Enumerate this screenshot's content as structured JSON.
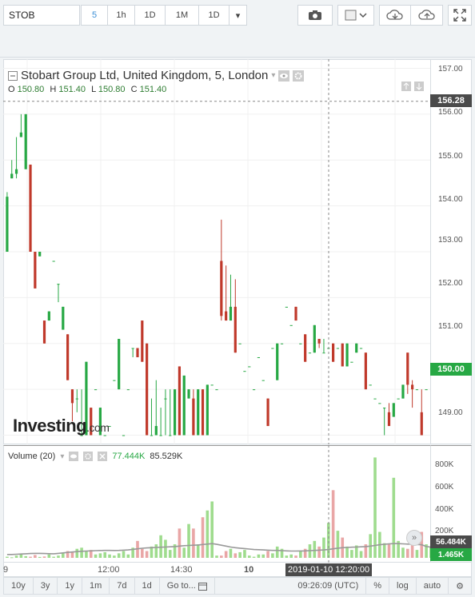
{
  "toolbar": {
    "symbol": "STOB",
    "intervals": [
      "5",
      "1h",
      "1D",
      "1M",
      "1D"
    ],
    "active_interval": "5"
  },
  "legend": {
    "title": "Stobart Group Ltd, United Kingdom, 5, London",
    "o_label": "O",
    "o": "150.80",
    "h_label": "H",
    "h": "151.40",
    "l_label": "L",
    "l": "150.80",
    "c_label": "C",
    "c": "151.40"
  },
  "price_axis": {
    "ticks": [
      "157.00",
      "156.00",
      "155.00",
      "154.00",
      "153.00",
      "152.00",
      "151.00",
      "150.00",
      "149.00"
    ],
    "crosshair_label": "156.28",
    "last_price_label": "150.00"
  },
  "volume": {
    "title": "Volume (20)",
    "value1": "77.444K",
    "value2": "85.529K",
    "ticks": [
      "800K",
      "600K",
      "400K",
      "200K"
    ],
    "tag1": "56.484K",
    "tag2": "1.465K"
  },
  "time_axis": {
    "ticks": [
      "9",
      "12:00",
      "14:30",
      "10"
    ],
    "crosshair_label": "2019-01-10 12:20:00"
  },
  "bottom_bar": {
    "ranges": [
      "10y",
      "3y",
      "1y",
      "1m",
      "7d",
      "1d",
      "Go to..."
    ],
    "clock": "09:26:09 (UTC)",
    "toggles": [
      "%",
      "log",
      "auto"
    ]
  },
  "branding": {
    "logo": "Investing",
    "logo_suffix": ".com"
  },
  "colors": {
    "up": "#27a844",
    "down": "#c0392b",
    "vol_up": "#9fdc8e",
    "vol_down": "#e9a6a6",
    "accent": "#3d8fd6"
  },
  "chart_data": {
    "type": "candlestick",
    "y_range": [
      148.8,
      157.2
    ],
    "candles": [
      {
        "o": 153.0,
        "h": 154.3,
        "l": 153.0,
        "c": 154.2
      },
      {
        "o": 154.6,
        "h": 155.0,
        "l": 154.6,
        "c": 154.7
      },
      {
        "o": 154.7,
        "h": 155.5,
        "l": 154.6,
        "c": 154.8
      },
      {
        "o": 155.5,
        "h": 156.0,
        "l": 155.5,
        "c": 155.6
      },
      {
        "o": 154.8,
        "h": 156.0,
        "l": 154.8,
        "c": 156.0
      },
      {
        "o": 154.9,
        "h": 154.9,
        "l": 153.0,
        "c": 153.0
      },
      {
        "o": 153.0,
        "h": 153.0,
        "l": 152.2,
        "c": 152.2
      },
      {
        "o": 152.9,
        "h": 153.0,
        "l": 152.9,
        "c": 153.0
      },
      {
        "o": 151.5,
        "h": 151.5,
        "l": 151.0,
        "c": 151.0
      },
      {
        "o": 151.5,
        "h": 151.7,
        "l": 151.5,
        "c": 151.7
      },
      {
        "o": 152.8,
        "h": 152.8,
        "l": 152.8,
        "c": 152.8
      },
      {
        "o": 152.3,
        "h": 152.3,
        "l": 151.9,
        "c": 152.3
      },
      {
        "o": 151.3,
        "h": 151.8,
        "l": 151.3,
        "c": 151.8
      },
      {
        "o": 151.2,
        "h": 151.2,
        "l": 150.2,
        "c": 150.2
      },
      {
        "o": 150.0,
        "h": 150.0,
        "l": 149.3,
        "c": 149.7
      },
      {
        "o": 149.8,
        "h": 150.0,
        "l": 149.5,
        "c": 149.8
      },
      {
        "o": 149.0,
        "h": 150.0,
        "l": 149.0,
        "c": 149.0
      },
      {
        "o": 149.0,
        "h": 150.6,
        "l": 149.0,
        "c": 150.6
      },
      {
        "o": 149.6,
        "h": 149.6,
        "l": 149.0,
        "c": 149.0
      },
      {
        "o": 150.0,
        "h": 150.0,
        "l": 150.0,
        "c": 150.0
      },
      {
        "o": 149.0,
        "h": 149.6,
        "l": 149.0,
        "c": 149.6
      },
      {
        "o": 149.0,
        "h": 149.0,
        "l": 149.0,
        "c": 149.0
      },
      {
        "o": 149.2,
        "h": 149.2,
        "l": 149.2,
        "c": 149.2
      },
      {
        "o": 150.2,
        "h": 150.2,
        "l": 150.2,
        "c": 150.2
      },
      {
        "o": 150.0,
        "h": 151.1,
        "l": 150.0,
        "c": 151.1
      },
      {
        "o": 149.0,
        "h": 149.0,
        "l": 149.0,
        "c": 149.0
      },
      {
        "o": 150.0,
        "h": 150.0,
        "l": 150.0,
        "c": 150.0
      },
      {
        "o": 150.9,
        "h": 150.9,
        "l": 150.7,
        "c": 150.9
      },
      {
        "o": 150.9,
        "h": 150.9,
        "l": 150.7,
        "c": 150.7
      },
      {
        "o": 151.5,
        "h": 151.5,
        "l": 150.6,
        "c": 150.6
      },
      {
        "o": 151.0,
        "h": 151.0,
        "l": 149.0,
        "c": 149.0
      },
      {
        "o": 149.0,
        "h": 149.8,
        "l": 149.0,
        "c": 149.0
      },
      {
        "o": 149.0,
        "h": 150.2,
        "l": 149.0,
        "c": 149.2
      },
      {
        "o": 149.0,
        "h": 149.6,
        "l": 149.0,
        "c": 149.0
      },
      {
        "o": 149.8,
        "h": 150.0,
        "l": 149.0,
        "c": 149.8
      },
      {
        "o": 149.0,
        "h": 150.0,
        "l": 149.0,
        "c": 149.0
      },
      {
        "o": 149.0,
        "h": 150.0,
        "l": 149.0,
        "c": 150.0
      },
      {
        "o": 150.5,
        "h": 150.5,
        "l": 149.0,
        "c": 149.0
      },
      {
        "o": 149.0,
        "h": 150.3,
        "l": 149.0,
        "c": 150.3
      },
      {
        "o": 149.8,
        "h": 150.0,
        "l": 149.8,
        "c": 150.0
      },
      {
        "o": 149.8,
        "h": 150.0,
        "l": 149.0,
        "c": 149.0
      },
      {
        "o": 149.0,
        "h": 150.0,
        "l": 149.0,
        "c": 150.0
      },
      {
        "o": 150.0,
        "h": 150.0,
        "l": 149.0,
        "c": 149.0
      },
      {
        "o": 149.0,
        "h": 150.1,
        "l": 149.0,
        "c": 150.1
      },
      {
        "o": 150.1,
        "h": 150.1,
        "l": 150.1,
        "c": 150.1
      },
      {
        "o": 150.0,
        "h": 150.0,
        "l": 150.0,
        "c": 150.0
      },
      {
        "o": 152.8,
        "h": 153.7,
        "l": 151.5,
        "c": 151.6
      },
      {
        "o": 151.7,
        "h": 152.7,
        "l": 151.5,
        "c": 151.5
      },
      {
        "o": 151.5,
        "h": 152.5,
        "l": 151.5,
        "c": 151.8
      },
      {
        "o": 151.8,
        "h": 152.4,
        "l": 150.8,
        "c": 150.8
      },
      {
        "o": 151.0,
        "h": 151.0,
        "l": 151.0,
        "c": 151.0
      },
      {
        "o": 150.4,
        "h": 150.4,
        "l": 150.4,
        "c": 150.4
      },
      {
        "o": 150.5,
        "h": 150.5,
        "l": 150.5,
        "c": 150.5
      },
      {
        "o": 150.0,
        "h": 150.0,
        "l": 150.0,
        "c": 150.0
      },
      {
        "o": 150.7,
        "h": 150.7,
        "l": 150.7,
        "c": 150.7
      },
      {
        "o": 150.2,
        "h": 150.2,
        "l": 150.2,
        "c": 150.2
      },
      {
        "o": 149.8,
        "h": 149.8,
        "l": 149.2,
        "c": 149.2
      },
      {
        "o": 150.9,
        "h": 150.9,
        "l": 150.9,
        "c": 150.9
      },
      {
        "o": 150.2,
        "h": 151.0,
        "l": 150.2,
        "c": 151.0
      },
      {
        "o": 151.0,
        "h": 151.0,
        "l": 151.0,
        "c": 151.0
      },
      {
        "o": 151.8,
        "h": 151.8,
        "l": 151.8,
        "c": 151.8
      },
      {
        "o": 151.4,
        "h": 151.4,
        "l": 151.4,
        "c": 151.4
      },
      {
        "o": 151.8,
        "h": 151.8,
        "l": 151.5,
        "c": 151.5
      },
      {
        "o": 151.0,
        "h": 151.0,
        "l": 151.0,
        "c": 151.0
      },
      {
        "o": 151.2,
        "h": 151.2,
        "l": 150.6,
        "c": 150.6
      },
      {
        "o": 150.8,
        "h": 150.8,
        "l": 150.8,
        "c": 150.8
      },
      {
        "o": 150.8,
        "h": 151.4,
        "l": 150.8,
        "c": 151.4
      },
      {
        "o": 151.1,
        "h": 151.1,
        "l": 150.9,
        "c": 151.0
      },
      {
        "o": 150.8,
        "h": 151.1,
        "l": 150.8,
        "c": 150.8
      },
      {
        "o": 150.9,
        "h": 150.9,
        "l": 150.9,
        "c": 150.9
      },
      {
        "o": 151.0,
        "h": 151.0,
        "l": 150.6,
        "c": 150.6
      },
      {
        "o": 150.9,
        "h": 150.9,
        "l": 150.9,
        "c": 150.9
      },
      {
        "o": 151.0,
        "h": 151.0,
        "l": 150.5,
        "c": 150.5
      },
      {
        "o": 150.5,
        "h": 151.0,
        "l": 150.5,
        "c": 151.0
      },
      {
        "o": 150.6,
        "h": 150.6,
        "l": 150.6,
        "c": 150.6
      },
      {
        "o": 150.8,
        "h": 151.0,
        "l": 150.8,
        "c": 151.0
      },
      {
        "o": 150.9,
        "h": 150.9,
        "l": 150.9,
        "c": 150.9
      },
      {
        "o": 150.8,
        "h": 150.8,
        "l": 150.0,
        "c": 150.0
      },
      {
        "o": 150.1,
        "h": 150.1,
        "l": 150.1,
        "c": 150.1
      },
      {
        "o": 149.8,
        "h": 149.8,
        "l": 149.8,
        "c": 149.8
      },
      {
        "o": 149.7,
        "h": 149.7,
        "l": 149.7,
        "c": 149.7
      },
      {
        "o": 149.6,
        "h": 149.6,
        "l": 149.0,
        "c": 149.6
      },
      {
        "o": 149.5,
        "h": 149.7,
        "l": 149.2,
        "c": 149.2
      },
      {
        "o": 149.4,
        "h": 149.7,
        "l": 149.4,
        "c": 149.7
      },
      {
        "o": 149.8,
        "h": 149.8,
        "l": 149.8,
        "c": 149.8
      },
      {
        "o": 149.8,
        "h": 150.1,
        "l": 149.8,
        "c": 150.1
      },
      {
        "o": 150.8,
        "h": 150.8,
        "l": 149.9,
        "c": 150.1
      },
      {
        "o": 150.1,
        "h": 150.2,
        "l": 149.6,
        "c": 150.0
      },
      {
        "o": 150.0,
        "h": 150.0,
        "l": 150.0,
        "c": 150.0
      },
      {
        "o": 149.5,
        "h": 150.0,
        "l": 149.0,
        "c": 149.0
      },
      {
        "o": 150.0,
        "h": 150.0,
        "l": 150.0,
        "c": 150.0
      }
    ],
    "volume_range": [
      0,
      900000
    ],
    "volumes": [
      10000,
      5000,
      20000,
      30000,
      15000,
      10000,
      25000,
      8000,
      12000,
      30000,
      10000,
      20000,
      40000,
      60000,
      50000,
      80000,
      90000,
      60000,
      70000,
      30000,
      40000,
      50000,
      30000,
      20000,
      40000,
      60000,
      30000,
      90000,
      150000,
      80000,
      60000,
      100000,
      120000,
      200000,
      160000,
      70000,
      120000,
      260000,
      90000,
      300000,
      260000,
      120000,
      360000,
      420000,
      500000,
      20000,
      20000,
      60000,
      80000,
      40000,
      50000,
      70000,
      20000,
      10000,
      30000,
      30000,
      60000,
      40000,
      100000,
      80000,
      20000,
      30000,
      20000,
      60000,
      80000,
      120000,
      150000,
      100000,
      180000,
      310000,
      600000,
      240000,
      180000,
      100000,
      70000,
      110000,
      60000,
      120000,
      210000,
      890000,
      230000,
      130000,
      120000,
      710000,
      150000,
      90000,
      80000,
      120000,
      70000,
      230000,
      120000,
      100000
    ],
    "ma_line": [
      30000,
      30000,
      32000,
      34000,
      36000,
      38000,
      40000,
      40000,
      38000,
      37000,
      36000,
      40000,
      44000,
      48000,
      52000,
      55000,
      58000,
      60000,
      62000,
      64000,
      65000,
      66000,
      66000,
      65000,
      66000,
      68000,
      70000,
      75000,
      80000,
      85000,
      88000,
      90000,
      92000,
      94000,
      96000,
      98000,
      100000,
      104000,
      108000,
      110000,
      112000,
      114000,
      118000,
      122000,
      126000,
      120000,
      112000,
      104000,
      96000,
      90000,
      86000,
      82000,
      78000,
      74000,
      72000,
      70000,
      68000,
      66000,
      66000,
      64000,
      62000,
      60000,
      60000,
      61000,
      62000,
      64000,
      66000,
      68000,
      70000,
      74000,
      80000,
      86000,
      90000,
      92000,
      94000,
      96000,
      98000,
      100000,
      104000,
      110000,
      116000,
      120000,
      124000,
      126000,
      126000,
      124000,
      122000,
      120000,
      118000,
      116000,
      100000,
      95000
    ]
  }
}
